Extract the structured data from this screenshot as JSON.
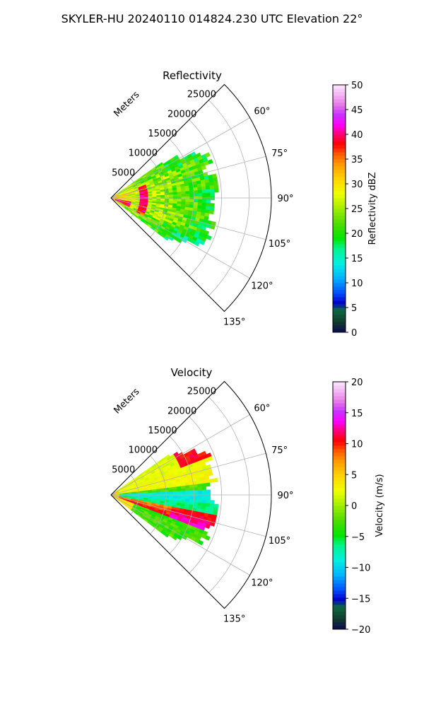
{
  "figure": {
    "title": "SKYLER-HU  20240110  014824.230 UTC Elevation 22°"
  },
  "chart_data": [
    {
      "type": "heatmap",
      "subtype": "polar-sector",
      "title": "Reflectivity",
      "radial_axis_label": "Meters",
      "radial_ticks": [
        "5000",
        "10000",
        "15000",
        "20000",
        "25000"
      ],
      "radial_tick_values": [
        5000,
        10000,
        15000,
        20000,
        25000
      ],
      "r_range": [
        0,
        29000
      ],
      "angular_range_deg": [
        45,
        135
      ],
      "angular_ticks": [
        "60°",
        "75°",
        "90°",
        "105°",
        "120°",
        "135°"
      ],
      "angular_tick_values": [
        60,
        75,
        90,
        105,
        120,
        135
      ],
      "grid": true,
      "data_extent": {
        "angle_deg": [
          55,
          127
        ],
        "range_m": [
          0,
          19500
        ]
      },
      "colorbar": {
        "label": "Reflectivity dBZ",
        "range": [
          0,
          50
        ],
        "ticks": [
          "0",
          "5",
          "10",
          "15",
          "20",
          "25",
          "30",
          "35",
          "40",
          "45",
          "50"
        ],
        "tick_values": [
          0,
          5,
          10,
          15,
          20,
          25,
          30,
          35,
          40,
          45,
          50
        ],
        "colorstops": [
          {
            "v": 0.0,
            "c": "#0b0b55"
          },
          {
            "v": 0.04,
            "c": "#113a2c"
          },
          {
            "v": 0.09,
            "c": "#0d6a40"
          },
          {
            "v": 0.12,
            "c": "#0000c8"
          },
          {
            "v": 0.16,
            "c": "#0050ff"
          },
          {
            "v": 0.22,
            "c": "#00b4ff"
          },
          {
            "v": 0.28,
            "c": "#00f0e0"
          },
          {
            "v": 0.34,
            "c": "#00f58c"
          },
          {
            "v": 0.38,
            "c": "#00e600"
          },
          {
            "v": 0.44,
            "c": "#50dc00"
          },
          {
            "v": 0.5,
            "c": "#a0ee00"
          },
          {
            "v": 0.56,
            "c": "#f0ff00"
          },
          {
            "v": 0.62,
            "c": "#ffd400"
          },
          {
            "v": 0.68,
            "c": "#ff9a00"
          },
          {
            "v": 0.72,
            "c": "#ff5a00"
          },
          {
            "v": 0.76,
            "c": "#ff0000"
          },
          {
            "v": 0.8,
            "c": "#ff0070"
          },
          {
            "v": 0.84,
            "c": "#ff00ff"
          },
          {
            "v": 0.88,
            "c": "#c832ff"
          },
          {
            "v": 0.92,
            "c": "#e678e6"
          },
          {
            "v": 0.96,
            "c": "#f3b4f3"
          },
          {
            "v": 1.0,
            "c": "#fae6fa"
          }
        ]
      }
    },
    {
      "type": "heatmap",
      "subtype": "polar-sector",
      "title": "Velocity",
      "radial_axis_label": "Meters",
      "radial_ticks": [
        "5000",
        "10000",
        "15000",
        "20000",
        "25000"
      ],
      "radial_tick_values": [
        5000,
        10000,
        15000,
        20000,
        25000
      ],
      "r_range": [
        0,
        29000
      ],
      "angular_range_deg": [
        45,
        135
      ],
      "angular_ticks": [
        "60°",
        "75°",
        "90°",
        "105°",
        "120°",
        "135°"
      ],
      "angular_tick_values": [
        60,
        75,
        90,
        105,
        120,
        135
      ],
      "grid": true,
      "data_extent": {
        "angle_deg": [
          55,
          127
        ],
        "range_m": [
          0,
          19500
        ]
      },
      "colorbar": {
        "label": "Velocity (m/s)",
        "range": [
          -20,
          20
        ],
        "ticks": [
          "−20",
          "−15",
          "−10",
          "−5",
          "0",
          "5",
          "10",
          "15",
          "20"
        ],
        "tick_values": [
          -20,
          -15,
          -10,
          -5,
          0,
          5,
          10,
          15,
          20
        ],
        "colorstops": [
          {
            "v": 0.0,
            "c": "#0b0b55"
          },
          {
            "v": 0.04,
            "c": "#113a2c"
          },
          {
            "v": 0.09,
            "c": "#0d6a40"
          },
          {
            "v": 0.12,
            "c": "#0000c8"
          },
          {
            "v": 0.16,
            "c": "#0050ff"
          },
          {
            "v": 0.22,
            "c": "#00b4ff"
          },
          {
            "v": 0.28,
            "c": "#00f0e0"
          },
          {
            "v": 0.34,
            "c": "#00f58c"
          },
          {
            "v": 0.38,
            "c": "#00e600"
          },
          {
            "v": 0.44,
            "c": "#50dc00"
          },
          {
            "v": 0.5,
            "c": "#a0ee00"
          },
          {
            "v": 0.56,
            "c": "#f0ff00"
          },
          {
            "v": 0.62,
            "c": "#ffd400"
          },
          {
            "v": 0.68,
            "c": "#ff9a00"
          },
          {
            "v": 0.72,
            "c": "#ff5a00"
          },
          {
            "v": 0.76,
            "c": "#ff0000"
          },
          {
            "v": 0.8,
            "c": "#ff0070"
          },
          {
            "v": 0.84,
            "c": "#ff00ff"
          },
          {
            "v": 0.88,
            "c": "#c832ff"
          },
          {
            "v": 0.92,
            "c": "#e678e6"
          },
          {
            "v": 0.96,
            "c": "#f3b4f3"
          },
          {
            "v": 1.0,
            "c": "#fae6fa"
          }
        ]
      }
    }
  ]
}
